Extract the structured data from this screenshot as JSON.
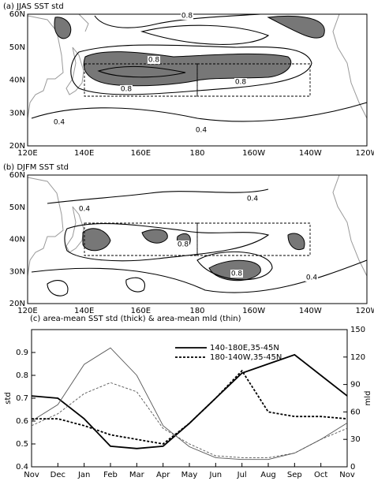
{
  "maps": [
    {
      "title": "(a) JJAS SST std",
      "lat_labels": [
        "20N",
        "30N",
        "40N",
        "50N",
        "60N"
      ],
      "lon_labels": [
        "120E",
        "140E",
        "160E",
        "180",
        "160W",
        "140W",
        "120W"
      ],
      "contour_labels": [
        0.8,
        0.8,
        0.8,
        0.8,
        0.4,
        0.4
      ]
    },
    {
      "title": "(b) DJFM SST std",
      "lat_labels": [
        "20N",
        "30N",
        "40N",
        "50N",
        "60N"
      ],
      "lon_labels": [
        "120E",
        "140E",
        "160E",
        "180",
        "160W",
        "140W",
        "120W"
      ],
      "contour_labels": [
        0.4,
        0.4,
        0.8,
        0.8,
        0.4
      ]
    }
  ],
  "chart_data": {
    "type": "line",
    "title": "(c) area-mean SST std (thick) & area-mean mld (thin)",
    "ylabel": "std",
    "y2label": "mld",
    "categories": [
      "Nov",
      "Dec",
      "Jan",
      "Feb",
      "Mar",
      "Apr",
      "May",
      "Jun",
      "Jul",
      "Aug",
      "Sep",
      "Oct",
      "Nov"
    ],
    "ylim": [
      0.4,
      1.0
    ],
    "yticks": [
      0.4,
      0.5,
      0.6,
      0.7,
      0.8,
      0.9
    ],
    "y2lim": [
      0,
      150
    ],
    "y2ticks": [
      0,
      30,
      60,
      90,
      120,
      150
    ],
    "series": [
      {
        "name": "140-180E,35-45N",
        "color": "#000",
        "dash": false,
        "width": 1.8,
        "values": [
          0.71,
          0.7,
          0.61,
          0.49,
          0.48,
          0.49,
          0.59,
          0.7,
          0.81,
          0.85,
          0.89,
          0.8,
          0.71
        ]
      },
      {
        "name": "180-140W,35-45N",
        "color": "#000",
        "dash": true,
        "width": 1.8,
        "values": [
          0.61,
          0.61,
          0.58,
          0.54,
          0.52,
          0.5,
          0.59,
          0.7,
          0.82,
          0.64,
          0.62,
          0.62,
          0.61
        ]
      },
      {
        "color": "#555",
        "dash": false,
        "width": 0.9,
        "axis": "y2",
        "values": [
          50,
          68,
          112,
          130,
          100,
          45,
          22,
          10,
          8,
          8,
          15,
          30,
          48
        ]
      },
      {
        "color": "#555",
        "dash": true,
        "width": 0.9,
        "axis": "y2",
        "values": [
          45,
          58,
          80,
          92,
          82,
          42,
          25,
          12,
          10,
          10,
          15,
          30,
          42
        ]
      }
    ]
  }
}
